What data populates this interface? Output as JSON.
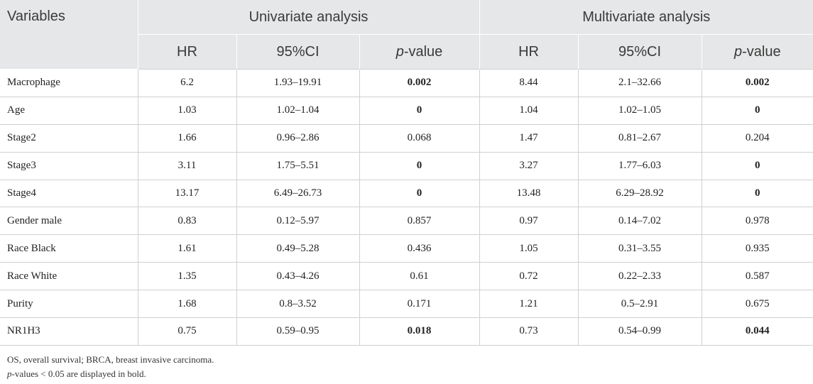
{
  "headers": {
    "variables": "Variables",
    "univariate": "Univariate analysis",
    "multivariate": "Multivariate analysis",
    "sub": [
      "HR",
      "95%CI",
      "p",
      "-value",
      "HR",
      "95%CI",
      "p",
      "-value"
    ]
  },
  "rows": [
    {
      "var": "Macrophage",
      "u_hr": "6.2",
      "u_ci": "1.93–19.91",
      "u_p": "0.002",
      "m_hr": "8.44",
      "m_ci": "2.1–32.66",
      "m_p": "0.002"
    },
    {
      "var": "Age",
      "u_hr": "1.03",
      "u_ci": "1.02–1.04",
      "u_p": "0",
      "m_hr": "1.04",
      "m_ci": "1.02–1.05",
      "m_p": "0"
    },
    {
      "var": "Stage2",
      "u_hr": "1.66",
      "u_ci": "0.96–2.86",
      "u_p": "0.068",
      "m_hr": "1.47",
      "m_ci": "0.81–2.67",
      "m_p": "0.204"
    },
    {
      "var": "Stage3",
      "u_hr": "3.11",
      "u_ci": "1.75–5.51",
      "u_p": "0",
      "m_hr": "3.27",
      "m_ci": "1.77–6.03",
      "m_p": "0"
    },
    {
      "var": "Stage4",
      "u_hr": "13.17",
      "u_ci": "6.49–26.73",
      "u_p": "0",
      "m_hr": "13.48",
      "m_ci": "6.29–28.92",
      "m_p": "0"
    },
    {
      "var": "Gender male",
      "u_hr": "0.83",
      "u_ci": "0.12–5.97",
      "u_p": "0.857",
      "m_hr": "0.97",
      "m_ci": "0.14–7.02",
      "m_p": "0.978"
    },
    {
      "var": "Race Black",
      "u_hr": "1.61",
      "u_ci": "0.49–5.28",
      "u_p": "0.436",
      "m_hr": "1.05",
      "m_ci": "0.31–3.55",
      "m_p": "0.935"
    },
    {
      "var": "Race White",
      "u_hr": "1.35",
      "u_ci": "0.43–4.26",
      "u_p": "0.61",
      "m_hr": "0.72",
      "m_ci": "0.22–2.33",
      "m_p": "0.587"
    },
    {
      "var": "Purity",
      "u_hr": "1.68",
      "u_ci": "0.8–3.52",
      "u_p": "0.171",
      "m_hr": "1.21",
      "m_ci": "0.5–2.91",
      "m_p": "0.675"
    },
    {
      "var": "NR1H3",
      "u_hr": "0.75",
      "u_ci": "0.59–0.95",
      "u_p": "0.018",
      "m_hr": "0.73",
      "m_ci": "0.54–0.99",
      "m_p": "0.044"
    }
  ],
  "notes": {
    "line1": "OS, overall survival; BRCA, breast invasive carcinoma.",
    "line2_italic": "p",
    "line2_rest": "-values < 0.05 are displayed in bold."
  }
}
